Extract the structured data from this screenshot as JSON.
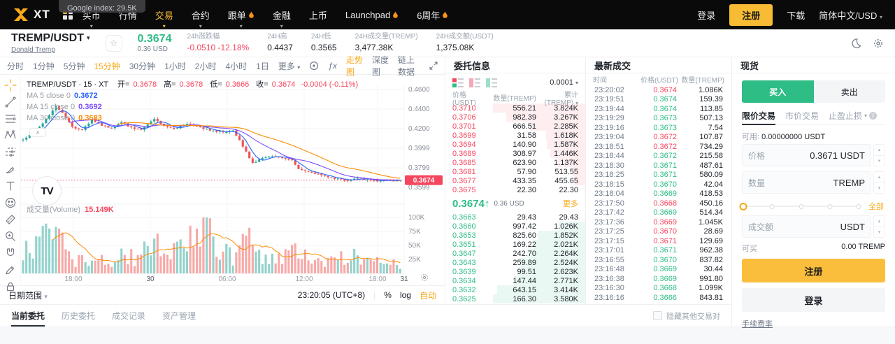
{
  "nav": {
    "logo_text": "XT",
    "tooltip": "Google index: 29.5K",
    "items": [
      {
        "label": "买币",
        "caret": true,
        "active": false,
        "hot": false
      },
      {
        "label": "行情",
        "caret": false,
        "active": false,
        "hot": false
      },
      {
        "label": "交易",
        "caret": true,
        "active": true,
        "hot": false
      },
      {
        "label": "合约",
        "caret": true,
        "active": false,
        "hot": false
      },
      {
        "label": "跟单",
        "caret": true,
        "active": false,
        "hot": true
      },
      {
        "label": "金融",
        "caret": true,
        "active": false,
        "hot": false
      },
      {
        "label": "上币",
        "caret": false,
        "active": false,
        "hot": false
      },
      {
        "label": "Launchpad",
        "caret": false,
        "active": false,
        "hot": true
      },
      {
        "label": "6周年",
        "caret": false,
        "active": false,
        "hot": true
      }
    ],
    "login": "登录",
    "register": "注册",
    "download": "下载",
    "locale": "简体中文/USD"
  },
  "ticker": {
    "pair": "TREMP/USDT",
    "name": "Donald Tremp",
    "price": "0.3674",
    "price_usd": "0.36 USD",
    "stats": [
      {
        "label": "24h涨跌幅",
        "value": "-0.0510 -12.18%",
        "negative": true
      },
      {
        "label": "24H高",
        "value": "0.4437",
        "negative": false
      },
      {
        "label": "24H低",
        "value": "0.3565",
        "negative": false
      },
      {
        "label": "24H成交量(TREMP)",
        "value": "3,477.38K",
        "negative": false
      },
      {
        "label": "24H成交额(USDT)",
        "value": "1,375.08K",
        "negative": false
      }
    ]
  },
  "chart": {
    "intervals": [
      "分时",
      "1分钟",
      "5分钟",
      "15分钟",
      "30分钟",
      "1小时",
      "2小时",
      "4小时",
      "1日"
    ],
    "active_interval": "15分钟",
    "more_label": "更多",
    "views": [
      "走势图",
      "深度图",
      "链上数据"
    ],
    "active_view": "走势图",
    "legend_title": "TREMP/USDT · 15 · XT",
    "ohlc": [
      {
        "k": "开",
        "v": "0.3678"
      },
      {
        "k": "高",
        "v": "0.3678"
      },
      {
        "k": "低",
        "v": "0.3666"
      },
      {
        "k": "收",
        "v": "0.3674"
      }
    ],
    "change": "-0.0004 (-0.11%)",
    "ma_legend": [
      {
        "label": "MA 5 close 0",
        "value": "0.3672",
        "color": "#2962FF"
      },
      {
        "label": "MA 15 close 0",
        "value": "0.3692",
        "color": "#7C4DFF"
      },
      {
        "label": "MA 30 close 0",
        "value": "0.3683",
        "color": "#FB8C00"
      }
    ],
    "volume_label": "成交量(Volume)",
    "volume_value": "15.149K",
    "watermark": "TV",
    "price_badge": "0.3674",
    "badge_value": 0.3674,
    "y_ticks": [
      {
        "label": "0.4600",
        "v": 0.46
      },
      {
        "label": "0.4400",
        "v": 0.44
      },
      {
        "label": "0.4200",
        "v": 0.42
      },
      {
        "label": "0.3999",
        "v": 0.3999
      },
      {
        "label": "0.3799",
        "v": 0.3799
      },
      {
        "label": "0.3599",
        "v": 0.3599
      }
    ],
    "vol_ticks": [
      {
        "label": "100K",
        "v": 100
      },
      {
        "label": "75K",
        "v": 75
      },
      {
        "label": "50K",
        "v": 50
      },
      {
        "label": "25K",
        "v": 25
      }
    ],
    "x_ticks": [
      {
        "label": "18:00",
        "x": 105,
        "major": false
      },
      {
        "label": "30",
        "x": 215,
        "major": true
      },
      {
        "label": "06:00",
        "x": 325,
        "major": false
      },
      {
        "label": "12:00",
        "x": 435,
        "major": false
      },
      {
        "label": "18:00",
        "x": 540,
        "major": false
      },
      {
        "label": "31",
        "x": 578,
        "major": true
      }
    ],
    "bottom": {
      "range": "日期范围",
      "time": "23:20:05 (UTC+8)",
      "percent": "%",
      "log": "log",
      "auto": "自动"
    },
    "drawing_tools": [
      "crosshair",
      "trend-line",
      "fib-lines",
      "xabcd-pattern",
      "forecast",
      "brush",
      "text",
      "emoji",
      "ruler",
      "zoom-in",
      "magnet",
      "drawing-lock",
      "lock"
    ],
    "gen": {
      "n": 116,
      "seed": 7,
      "price_anchors": [
        [
          0,
          0.409
        ],
        [
          4,
          0.418
        ],
        [
          7,
          0.43
        ],
        [
          10,
          0.4425
        ],
        [
          12,
          0.436
        ],
        [
          15,
          0.422
        ],
        [
          18,
          0.4185
        ],
        [
          21,
          0.429
        ],
        [
          24,
          0.4235
        ],
        [
          27,
          0.42
        ],
        [
          30,
          0.4265
        ],
        [
          33,
          0.421
        ],
        [
          36,
          0.4185
        ],
        [
          40,
          0.43
        ],
        [
          43,
          0.4225
        ],
        [
          46,
          0.4195
        ],
        [
          50,
          0.425
        ],
        [
          54,
          0.4215
        ],
        [
          57,
          0.418
        ],
        [
          61,
          0.4165
        ],
        [
          64,
          0.418
        ],
        [
          66,
          0.408
        ],
        [
          68,
          0.396
        ],
        [
          70,
          0.3845
        ],
        [
          73,
          0.39
        ],
        [
          76,
          0.3925
        ],
        [
          79,
          0.3895
        ],
        [
          82,
          0.3875
        ],
        [
          84,
          0.379
        ],
        [
          87,
          0.3755
        ],
        [
          90,
          0.3735
        ],
        [
          93,
          0.3705
        ],
        [
          96,
          0.3685
        ],
        [
          99,
          0.3665
        ],
        [
          102,
          0.3695
        ],
        [
          105,
          0.3675
        ],
        [
          108,
          0.3662
        ],
        [
          111,
          0.3678
        ],
        [
          113,
          0.3669
        ],
        [
          115,
          0.3674
        ]
      ],
      "vol_anchors": [
        [
          0,
          40
        ],
        [
          5,
          60
        ],
        [
          9,
          92
        ],
        [
          12,
          55
        ],
        [
          16,
          22
        ],
        [
          20,
          30
        ],
        [
          24,
          26
        ],
        [
          28,
          20
        ],
        [
          31,
          38
        ],
        [
          35,
          25
        ],
        [
          40,
          62
        ],
        [
          44,
          35
        ],
        [
          48,
          45
        ],
        [
          52,
          78
        ],
        [
          55,
          95
        ],
        [
          58,
          60
        ],
        [
          61,
          40
        ],
        [
          64,
          30
        ],
        [
          66,
          55
        ],
        [
          68,
          75
        ],
        [
          70,
          62
        ],
        [
          73,
          35
        ],
        [
          76,
          28
        ],
        [
          80,
          32
        ],
        [
          84,
          52
        ],
        [
          88,
          30
        ],
        [
          92,
          22
        ],
        [
          96,
          26
        ],
        [
          100,
          38
        ],
        [
          104,
          20
        ],
        [
          107,
          26
        ],
        [
          110,
          30
        ],
        [
          113,
          18
        ],
        [
          115,
          14
        ]
      ]
    }
  },
  "orderbook": {
    "title": "委托信息",
    "precision": "0.0001",
    "columns": [
      "价格(USDT)",
      "数量(TREMP)",
      "累计(TREMP)"
    ],
    "asks": [
      [
        "0.3710",
        "556.21",
        "3.824K"
      ],
      [
        "0.3706",
        "982.39",
        "3.267K"
      ],
      [
        "0.3701",
        "666.51",
        "2.285K"
      ],
      [
        "0.3699",
        "31.58",
        "1.618K"
      ],
      [
        "0.3694",
        "140.90",
        "1.587K"
      ],
      [
        "0.3689",
        "308.97",
        "1.446K"
      ],
      [
        "0.3685",
        "623.90",
        "1.137K"
      ],
      [
        "0.3681",
        "57.90",
        "513.55"
      ],
      [
        "0.3677",
        "433.35",
        "455.65"
      ],
      [
        "0.3675",
        "22.30",
        "22.30"
      ]
    ],
    "mid": {
      "price": "0.3674",
      "arrow": "↑",
      "usd": "0.36 USD",
      "more": "更多"
    },
    "bids": [
      [
        "0.3663",
        "29.43",
        "29.43"
      ],
      [
        "0.3660",
        "997.42",
        "1.026K"
      ],
      [
        "0.3653",
        "825.60",
        "1.852K"
      ],
      [
        "0.3651",
        "169.22",
        "2.021K"
      ],
      [
        "0.3647",
        "242.70",
        "2.264K"
      ],
      [
        "0.3643",
        "259.89",
        "2.524K"
      ],
      [
        "0.3639",
        "99.51",
        "2.623K"
      ],
      [
        "0.3634",
        "147.44",
        "2.771K"
      ],
      [
        "0.3632",
        "643.15",
        "3.414K"
      ],
      [
        "0.3625",
        "166.30",
        "3.580K"
      ]
    ]
  },
  "trades": {
    "title": "最新成交",
    "columns": [
      "时间",
      "价格(USDT)",
      "数量(TREMP)"
    ],
    "rows": [
      [
        "23:20:02",
        "0.3674",
        "1.086K",
        "down"
      ],
      [
        "23:19:51",
        "0.3674",
        "159.39",
        "up"
      ],
      [
        "23:19:44",
        "0.3674",
        "113.85",
        "up"
      ],
      [
        "23:19:29",
        "0.3673",
        "507.13",
        "up"
      ],
      [
        "23:19:16",
        "0.3673",
        "7.54",
        "up"
      ],
      [
        "23:19:04",
        "0.3672",
        "107.87",
        "down"
      ],
      [
        "23:18:51",
        "0.3672",
        "734.29",
        "down"
      ],
      [
        "23:18:44",
        "0.3672",
        "215.58",
        "up"
      ],
      [
        "23:18:30",
        "0.3671",
        "487.61",
        "up"
      ],
      [
        "23:18:25",
        "0.3671",
        "580.09",
        "up"
      ],
      [
        "23:18:15",
        "0.3670",
        "42.04",
        "up"
      ],
      [
        "23:18:04",
        "0.3669",
        "418.53",
        "up"
      ],
      [
        "23:17:50",
        "0.3668",
        "450.16",
        "down"
      ],
      [
        "23:17:42",
        "0.3669",
        "514.34",
        "up"
      ],
      [
        "23:17:36",
        "0.3669",
        "1.045K",
        "down"
      ],
      [
        "23:17:25",
        "0.3670",
        "28.69",
        "down"
      ],
      [
        "23:17:15",
        "0.3671",
        "129.69",
        "down"
      ],
      [
        "23:17:01",
        "0.3671",
        "962.38",
        "up"
      ],
      [
        "23:16:55",
        "0.3670",
        "837.82",
        "up"
      ],
      [
        "23:16:48",
        "0.3669",
        "30.44",
        "up"
      ],
      [
        "23:16:38",
        "0.3669",
        "991.80",
        "up"
      ],
      [
        "23:16:30",
        "0.3668",
        "1.099K",
        "up"
      ],
      [
        "23:16:16",
        "0.3666",
        "843.81",
        "up"
      ]
    ]
  },
  "trade_form": {
    "title": "现货",
    "buy": "买入",
    "sell": "卖出",
    "tabs": [
      "限价交易",
      "市价交易",
      "止盈止损"
    ],
    "active_tab": "限价交易",
    "avail_label": "可用:",
    "avail_value": "0.00000000 USDT",
    "price_label": "价格",
    "price_value": "0.3671",
    "price_unit": "USDT",
    "qty_label": "数量",
    "qty_unit": "TREMP",
    "slider_all": "全部",
    "amount_label": "成交额",
    "amount_unit": "USDT",
    "canbuy_label": "可买",
    "canbuy_value": "0.00 TREMP",
    "register": "注册",
    "login": "登录",
    "fee_link": "手续费率"
  },
  "bottom_tabs": {
    "items": [
      "当前委托",
      "历史委托",
      "成交记录",
      "资产管理"
    ],
    "active": "当前委托",
    "hide_other": "隐藏其他交易对"
  },
  "colors": {
    "up": "#2EBD85",
    "down": "#F6465D",
    "accent": "#F8BC34",
    "candle_up": "#26A69A",
    "candle_down": "#EF5350"
  }
}
